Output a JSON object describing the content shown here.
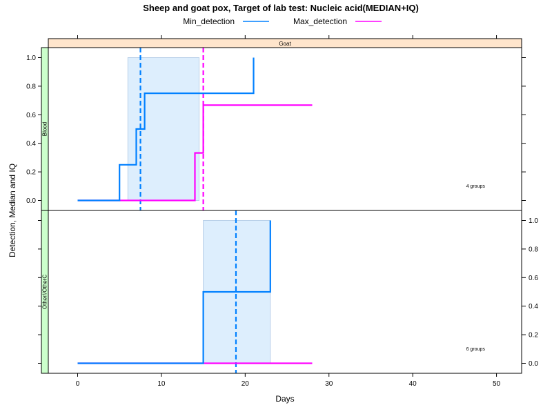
{
  "chart_data": {
    "type": "line",
    "title": "Sheep and goat pox, Target of lab test: Nucleic acid(MEDIAN+IQ)",
    "xlabel": "Days",
    "ylabel": "Detection, Median and IQ",
    "xlim": [
      -3.5,
      53
    ],
    "x_ticks": [
      0,
      10,
      20,
      30,
      40,
      50
    ],
    "ylim": [
      -0.07,
      1.07
    ],
    "y_ticks": [
      0.0,
      0.2,
      0.4,
      0.6,
      0.8,
      1.0
    ],
    "legend": {
      "placement": "top",
      "entries": [
        {
          "name": "Min_detection",
          "color": "#0080ff"
        },
        {
          "name": "Max_detection",
          "color": "#ff00ff"
        }
      ]
    },
    "column_strip": "Goat",
    "panels": [
      {
        "row_strip": "Blood",
        "note": "4 groups",
        "y_axis_side": "left",
        "band": {
          "x0": 6.0,
          "x1": 14.5,
          "y0": 0.0,
          "y1": 1.0
        },
        "series": [
          {
            "name": "Min_detection",
            "color": "#0080ff",
            "steps": [
              [
                0,
                0
              ],
              [
                5,
                0
              ],
              [
                5,
                0.25
              ],
              [
                7,
                0.25
              ],
              [
                7,
                0.5
              ],
              [
                8,
                0.5
              ],
              [
                8,
                0.75
              ],
              [
                21,
                0.75
              ],
              [
                21,
                1.0
              ]
            ],
            "median": 7.5
          },
          {
            "name": "Max_detection",
            "color": "#ff00ff",
            "steps": [
              [
                0,
                0
              ],
              [
                14,
                0
              ],
              [
                14,
                0.333
              ],
              [
                15,
                0.333
              ],
              [
                15,
                0.667
              ],
              [
                28,
                0.667
              ]
            ],
            "median": 15.0
          }
        ]
      },
      {
        "row_strip": "Other//OtherC",
        "note": "6 groups",
        "y_axis_side": "right",
        "band": {
          "x0": 15.0,
          "x1": 23.0,
          "y0": 0.0,
          "y1": 1.0
        },
        "series": [
          {
            "name": "Min_detection",
            "color": "#0080ff",
            "steps": [
              [
                0,
                0
              ],
              [
                15,
                0
              ],
              [
                15,
                0.5
              ],
              [
                23,
                0.5
              ],
              [
                23,
                1.0
              ]
            ],
            "median": 18.9
          },
          {
            "name": "Max_detection",
            "color": "#ff00ff",
            "steps": [
              [
                0,
                0
              ],
              [
                28,
                0
              ]
            ],
            "median": null
          }
        ]
      }
    ],
    "colors": {
      "band_fill": "#ddeefd",
      "band_stroke": "#b8cfe8",
      "strip_col": "#ffe5cc",
      "strip_row": "#ccffcc"
    }
  }
}
